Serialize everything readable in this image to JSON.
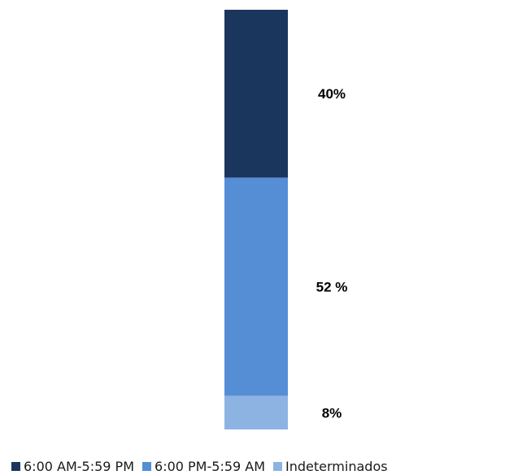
{
  "chart_data": {
    "type": "bar",
    "stacked": true,
    "categories": [
      ""
    ],
    "series": [
      {
        "name": "6:00 AM-5:59 PM",
        "values": [
          40
        ],
        "color": "#1b365d",
        "label": "40%"
      },
      {
        "name": "6:00 PM-5:59 AM",
        "values": [
          52
        ],
        "color": "#558ed5",
        "label": "52 %"
      },
      {
        "name": "Indeterminados",
        "values": [
          8
        ],
        "color": "#8db3e2",
        "label": "8%"
      }
    ],
    "stack_order": "bottom-to-top: Indeterminados, 6:00 PM-5:59 AM, 6:00 AM-5:59 PM",
    "ylim": [
      0,
      100
    ],
    "title": "",
    "xlabel": "",
    "ylabel": "",
    "grid": false,
    "legend_position": "bottom"
  }
}
